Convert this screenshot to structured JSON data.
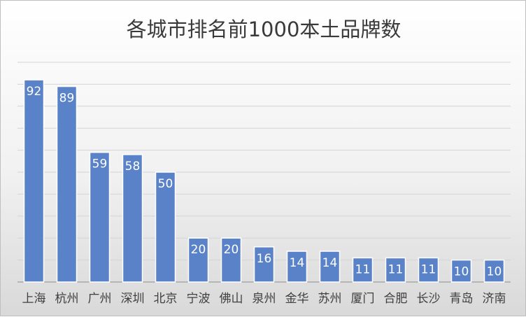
{
  "chart_data": {
    "type": "bar",
    "title": "各城市排名前1000本土品牌数",
    "categories": [
      "上海",
      "杭州",
      "广州",
      "深圳",
      "北京",
      "宁波",
      "佛山",
      "泉州",
      "金华",
      "苏州",
      "厦门",
      "合肥",
      "长沙",
      "青岛",
      "济南"
    ],
    "values": [
      92,
      89,
      59,
      58,
      50,
      20,
      20,
      16,
      14,
      14,
      11,
      11,
      11,
      10,
      10
    ],
    "xlabel": "",
    "ylabel": "",
    "ylim": [
      0,
      100
    ],
    "grid": true,
    "data_labels": "inside-end",
    "colors": {
      "bar": "#5a82c9",
      "bar_label": "#ffffff",
      "grid": "#d4d4d4"
    }
  }
}
